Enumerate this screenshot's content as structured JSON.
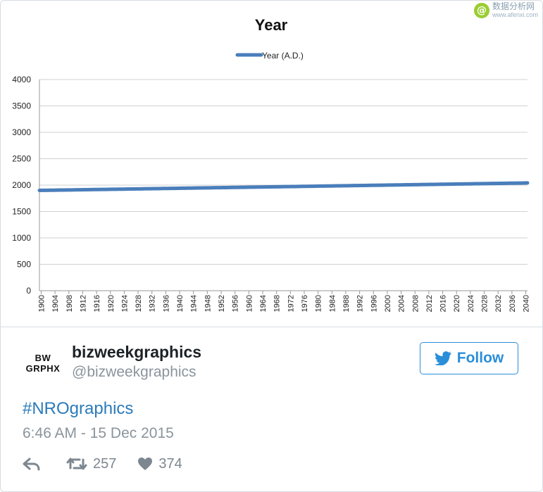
{
  "watermark": {
    "logo_glyph": "@",
    "cn_text": "数据分析网",
    "url_text": "www.afenxi.com"
  },
  "chart_data": {
    "type": "line",
    "title": "Year",
    "legend": {
      "label": "Year (A.D.)",
      "placement": "top-center"
    },
    "xlabel": "",
    "ylabel": "",
    "ylim": [
      0,
      4000
    ],
    "yticks": [
      "0",
      "500",
      "1000",
      "1500",
      "2000",
      "2500",
      "3000",
      "3500",
      "4000"
    ],
    "xlim": [
      1900,
      2041
    ],
    "xticks": [
      "1900",
      "1904",
      "1908",
      "1912",
      "1916",
      "1920",
      "1924",
      "1928",
      "1932",
      "1936",
      "1940",
      "1944",
      "1948",
      "1952",
      "1956",
      "1960",
      "1964",
      "1968",
      "1972",
      "1976",
      "1980",
      "1984",
      "1988",
      "1992",
      "1996",
      "2000",
      "2004",
      "2008",
      "2012",
      "2016",
      "2020",
      "2024",
      "2028",
      "2032",
      "2036",
      "2040"
    ],
    "grid": true,
    "series_color": "#4a7ebb",
    "series": [
      {
        "name": "Year (A.D.)",
        "x_start": 1900,
        "x_end": 2041,
        "y_start": 1900,
        "y_end": 2041
      }
    ]
  },
  "tweet": {
    "avatar_line1": "BW",
    "avatar_line2": "GRPHX",
    "display_name": "bizweekgraphics",
    "handle": "@bizweekgraphics",
    "follow_label": "Follow",
    "hashtag": "#NROgraphics",
    "timestamp": "6:46 AM - 15 Dec 2015",
    "retweet_count": "257",
    "like_count": "374",
    "accent_color": "#2a8ed9"
  }
}
